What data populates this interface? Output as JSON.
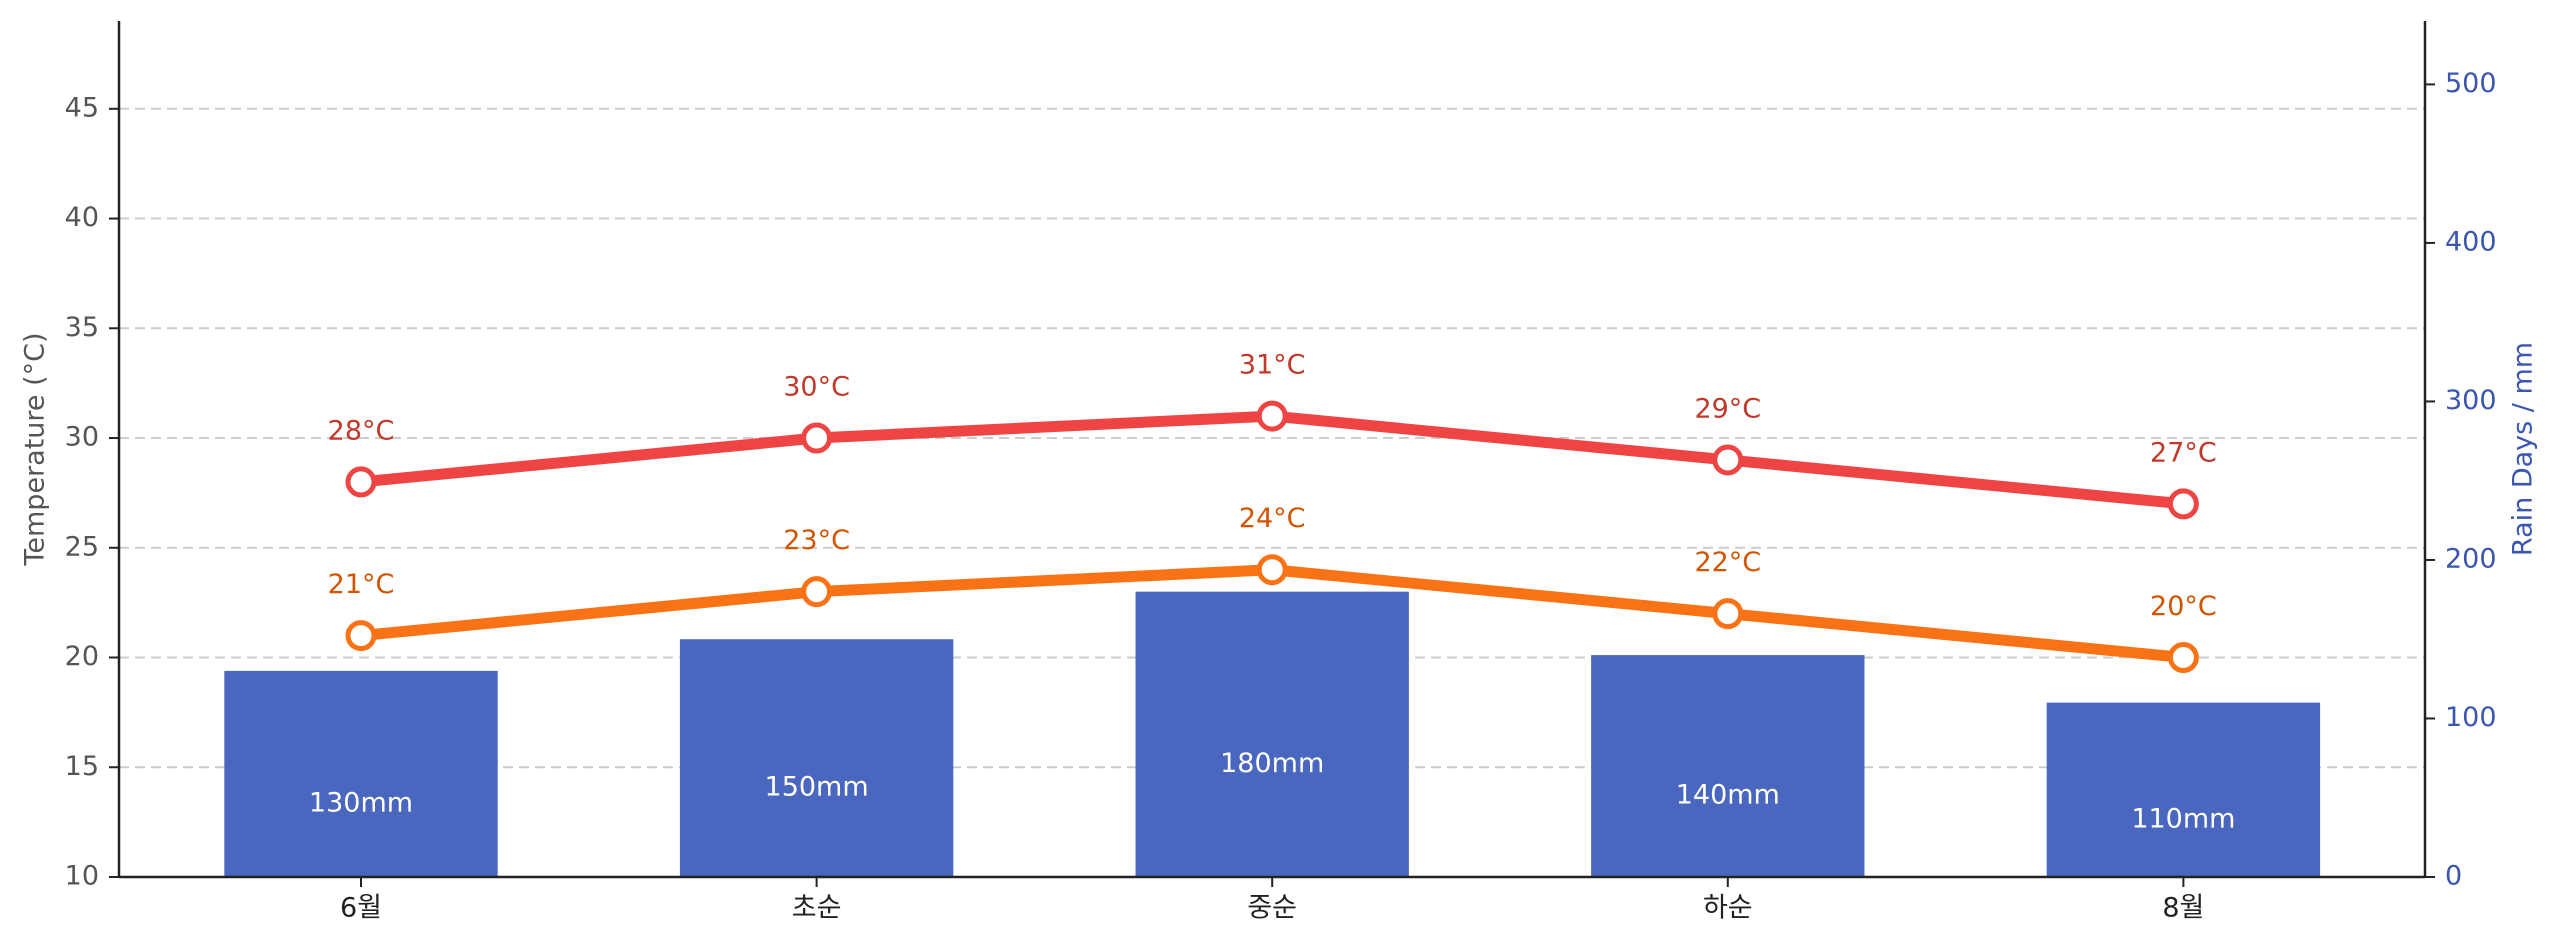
{
  "chart_data": {
    "type": "bar-line",
    "categories": [
      "6월",
      "초순",
      "중순",
      "하순",
      "8월"
    ],
    "y_label": "Temperature (°C)",
    "y2_label": "Rain Days / mm",
    "ylim": [
      10,
      49
    ],
    "yticks": [
      10,
      15,
      20,
      25,
      30,
      35,
      40,
      45
    ],
    "y2lim": [
      0,
      540
    ],
    "y2ticks": [
      0,
      100,
      200,
      300,
      400,
      500
    ],
    "grid": true,
    "series": [
      {
        "type": "bar",
        "axis": "y2",
        "color": "#4a67bf",
        "values": [
          130,
          150,
          180,
          140,
          110
        ],
        "value_labels": [
          "130mm",
          "150mm",
          "180mm",
          "140mm",
          "110mm"
        ]
      },
      {
        "type": "line",
        "color": "#ef4444",
        "values": [
          28,
          30,
          31,
          29,
          27
        ],
        "value_labels": [
          "28°C",
          "30°C",
          "31°C",
          "29°C",
          "27°C"
        ]
      },
      {
        "type": "line",
        "color": "#f97316",
        "values": [
          21,
          23,
          24,
          22,
          20
        ],
        "value_labels": [
          "21°C",
          "23°C",
          "24°C",
          "22°C",
          "20°C"
        ]
      }
    ]
  }
}
